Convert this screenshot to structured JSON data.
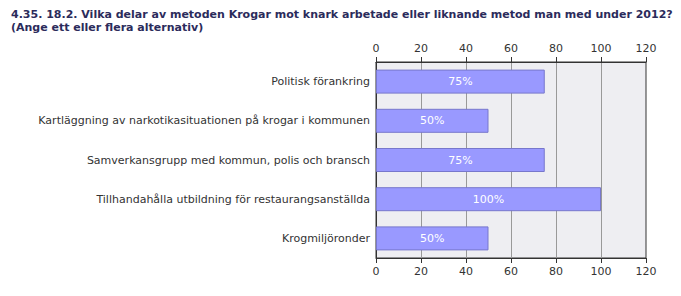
{
  "chart_data": {
    "type": "bar",
    "orientation": "horizontal",
    "title": "4.35. 18.2. Vilka delar av metoden Krogar mot knark arbetade eller liknande metod man med under 2012?",
    "subtitle": "(Ange ett eller flera alternativ)",
    "categories": [
      "Politisk förankring",
      "Kartläggning av narkotikasituationen på krogar i kommunen",
      "Samverkansgrupp med kommun, polis och bransch",
      "Tillhandahålla utbildning för restaurangsanställda",
      "Krogmiljöronder"
    ],
    "values": [
      75,
      50,
      75,
      100,
      50
    ],
    "value_labels": [
      "75%",
      "50%",
      "75%",
      "100%",
      "50%"
    ],
    "data_labels": true,
    "color": "#9999ff",
    "xlim": [
      0,
      120
    ],
    "xticks": [
      0,
      20,
      40,
      60,
      80,
      100,
      120
    ],
    "grid": true
  }
}
